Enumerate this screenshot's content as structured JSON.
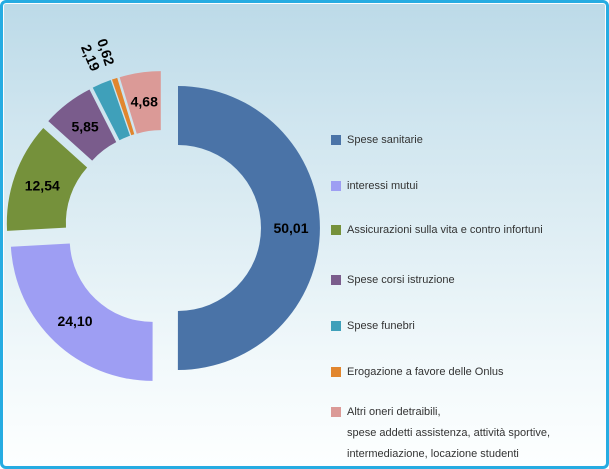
{
  "panel": {
    "border_color": "#26ACE2",
    "background_top": "#BCDAE8",
    "background_bottom": "#FDFFFF"
  },
  "chart_data": {
    "type": "pie",
    "subtype": "exploded-doughnut",
    "title": "",
    "unit": "percent",
    "legend_position": "right",
    "categories": [
      "Spese sanitarie",
      "interessi mutui",
      "Assicurazioni sulla vita e contro infortuni",
      "Spese corsi istruzione",
      "Spese funebri",
      "Erogazione a favore delle Onlus",
      "Altri oneri detraibili, spese addetti assistenza, attività sportive, intermediazione, locazione studenti"
    ],
    "values": [
      50.01,
      24.1,
      12.54,
      5.85,
      2.19,
      0.62,
      4.68
    ],
    "series": [
      {
        "label": "Spese sanitarie",
        "value": 50.01,
        "display": "50,01",
        "color": "#4A73A7",
        "label_placement": "inside"
      },
      {
        "label": "interessi mutui",
        "value": 24.1,
        "display": "24,10",
        "color": "#9E9EF3",
        "label_placement": "inside"
      },
      {
        "label": "Assicurazioni sulla vita e contro infortuni",
        "value": 12.54,
        "display": "12,54",
        "color": "#75913B",
        "label_placement": "inside"
      },
      {
        "label": "Spese corsi istruzione",
        "value": 5.85,
        "display": "5,85",
        "color": "#7A5C8C",
        "label_placement": "inside"
      },
      {
        "label": "Spese funebri",
        "value": 2.19,
        "display": "2,19",
        "color": "#3FA0BA",
        "label_placement": "outside-rotated"
      },
      {
        "label": "Erogazione a favore delle Onlus",
        "value": 0.62,
        "display": "0,62",
        "color": "#E1862E",
        "label_placement": "outside-rotated"
      },
      {
        "label": "Altri oneri detraibili,\nspese addetti assistenza, attività sportive,\nintermediazione, locazione studenti",
        "value": 4.68,
        "display": "4,68",
        "color": "#DB9A97",
        "label_placement": "inside"
      }
    ]
  }
}
